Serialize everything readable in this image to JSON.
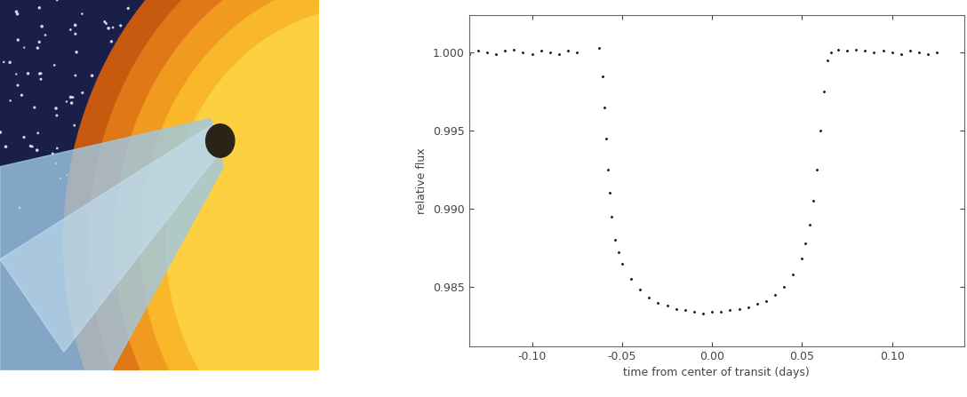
{
  "chart_data": {
    "type": "scatter",
    "x_label": "time from center of transit (days)",
    "y_label": "relative flux",
    "color": "#000000",
    "marker": ".",
    "grid": false,
    "x": [
      -0.135,
      -0.13,
      -0.125,
      -0.12,
      -0.115,
      -0.11,
      -0.105,
      -0.1,
      -0.095,
      -0.09,
      -0.085,
      -0.08,
      -0.075,
      -0.063,
      -0.061,
      -0.06,
      -0.059,
      -0.058,
      -0.057,
      -0.056,
      -0.054,
      -0.052,
      -0.05,
      -0.045,
      -0.04,
      -0.035,
      -0.03,
      -0.025,
      -0.02,
      -0.015,
      -0.01,
      -0.005,
      0.0,
      0.005,
      0.01,
      0.015,
      0.02,
      0.025,
      0.03,
      0.035,
      0.04,
      0.045,
      0.05,
      0.052,
      0.054,
      0.056,
      0.058,
      0.06,
      0.062,
      0.064,
      0.066,
      0.07,
      0.075,
      0.08,
      0.085,
      0.09,
      0.095,
      0.1,
      0.105,
      0.11,
      0.115,
      0.12,
      0.125
    ],
    "values": [
      0.9999,
      1.0001,
      1.0,
      0.9999,
      1.0001,
      1.0002,
      1.0,
      0.9999,
      1.0001,
      1.0,
      0.9999,
      1.0001,
      1.0,
      1.0003,
      0.9985,
      0.9965,
      0.9945,
      0.9925,
      0.991,
      0.9895,
      0.988,
      0.9872,
      0.9865,
      0.9855,
      0.9848,
      0.9843,
      0.984,
      0.9838,
      0.9836,
      0.9835,
      0.9834,
      0.9833,
      0.9834,
      0.9834,
      0.9835,
      0.9836,
      0.9837,
      0.9839,
      0.9841,
      0.9845,
      0.985,
      0.9858,
      0.9868,
      0.9878,
      0.989,
      0.9905,
      0.9925,
      0.995,
      0.9975,
      0.9995,
      1.0,
      1.0002,
      1.0001,
      1.0002,
      1.0001,
      1.0,
      1.0001,
      1.0,
      0.9999,
      1.0001,
      1.0,
      0.9999,
      1.0
    ],
    "xlim": [
      -0.135,
      0.14
    ],
    "ylim": [
      0.9812,
      1.0024
    ],
    "xticks": [
      {
        "value": -0.1,
        "label": "-0.10"
      },
      {
        "value": -0.05,
        "label": "-0.05"
      },
      {
        "value": 0.0,
        "label": "0.00"
      },
      {
        "value": 0.05,
        "label": "0.05"
      },
      {
        "value": 0.1,
        "label": "0.10"
      }
    ],
    "yticks": [
      0.985,
      {
        "value": 0.99,
        "label": "0.990"
      },
      0.995,
      {
        "value": 1.0,
        "label": "1.000"
      }
    ]
  }
}
